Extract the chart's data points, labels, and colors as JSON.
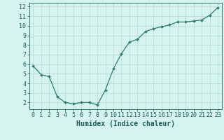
{
  "x": [
    0,
    1,
    2,
    3,
    4,
    5,
    6,
    7,
    8,
    9,
    10,
    11,
    12,
    13,
    14,
    15,
    16,
    17,
    18,
    19,
    20,
    21,
    22,
    23
  ],
  "y": [
    5.8,
    4.9,
    4.7,
    2.6,
    2.0,
    1.85,
    2.0,
    2.0,
    1.75,
    3.3,
    5.5,
    7.1,
    8.3,
    8.6,
    9.4,
    9.7,
    9.9,
    10.1,
    10.4,
    10.4,
    10.5,
    10.6,
    11.1,
    11.9
  ],
  "line_color": "#2e7d6e",
  "marker": "D",
  "marker_size": 2.0,
  "linewidth": 0.9,
  "xlabel": "Humidex (Indice chaleur)",
  "xlim": [
    -0.5,
    23.5
  ],
  "ylim": [
    1.3,
    12.4
  ],
  "yticks": [
    2,
    3,
    4,
    5,
    6,
    7,
    8,
    9,
    10,
    11,
    12
  ],
  "xticks": [
    0,
    1,
    2,
    3,
    4,
    5,
    6,
    7,
    8,
    9,
    10,
    11,
    12,
    13,
    14,
    15,
    16,
    17,
    18,
    19,
    20,
    21,
    22,
    23
  ],
  "bg_color": "#d6f4ef",
  "grid_color": "#b2d8d2",
  "tick_color": "#1e5e58",
  "font_color": "#1e5e58",
  "tick_fontsize": 6.0,
  "xlabel_fontsize": 7.0
}
